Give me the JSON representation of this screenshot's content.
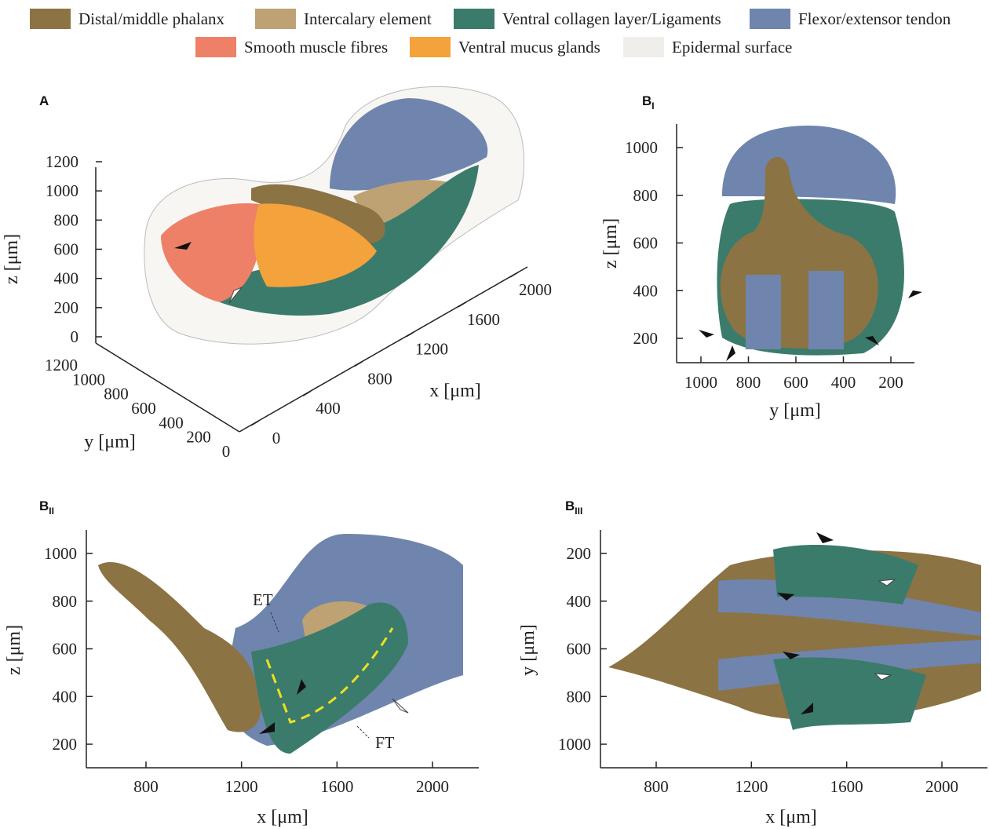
{
  "legend": [
    {
      "label": "Distal/middle phalanx",
      "color": "#8b7344"
    },
    {
      "label": "Intercalary element",
      "color": "#bea274"
    },
    {
      "label": "Ventral collagen layer/Ligaments",
      "color": "#3b7b6b"
    },
    {
      "label": "Flexor/extensor tendon",
      "color": "#6f85ae"
    },
    {
      "label": "Smooth muscle fibres",
      "color": "#ee8068"
    },
    {
      "label": "Ventral mucus glands",
      "color": "#f4a23c"
    },
    {
      "label": "Epidermal surface",
      "color": "#f0eeea"
    }
  ],
  "panels": [
    {
      "letter": "A",
      "z_label": "z [μm]",
      "z_ticks": [
        1200,
        1000,
        800,
        600,
        400,
        200,
        0
      ],
      "y_label": "y [μm]",
      "y_ticks": [
        1200,
        1000,
        800,
        600,
        400,
        200,
        0
      ],
      "x_label": "x [μm]",
      "x_ticks": [
        0,
        400,
        800,
        1200,
        1600,
        2000
      ]
    },
    {
      "letter": "B",
      "sub": "I",
      "z_label": "z [μm]",
      "z_ticks": [
        1000,
        800,
        600,
        400,
        200
      ],
      "y_label": "y [μm]",
      "y_ticks": [
        1000,
        800,
        600,
        400,
        200
      ]
    },
    {
      "letter": "B",
      "sub": "II",
      "z_label": "z [μm]",
      "z_ticks": [
        1000,
        800,
        600,
        400,
        200
      ],
      "x_label": "x [μm]",
      "x_ticks": [
        800,
        1200,
        1600,
        2000
      ],
      "annotations": [
        "ET",
        "FT"
      ]
    },
    {
      "letter": "B",
      "sub": "III",
      "y_label": "y [μm]",
      "y_ticks": [
        200,
        400,
        600,
        800,
        1000
      ],
      "x_label": "x [μm]",
      "x_ticks": [
        800,
        1200,
        1600,
        2000
      ]
    }
  ]
}
